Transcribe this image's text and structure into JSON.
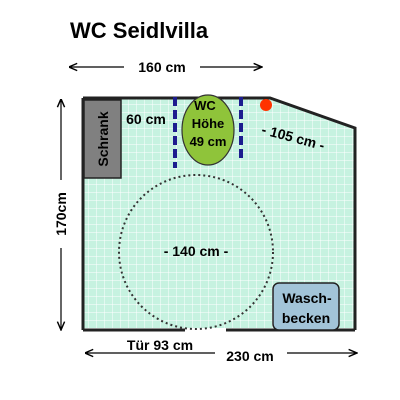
{
  "title": "WC Seidlvilla",
  "dimensions": {
    "top_width": "160 cm",
    "left_height": "170cm",
    "bottom_width": "230 cm",
    "door": "Tür 93 cm",
    "diagonal": "- 105 cm -",
    "wc_front": "60 cm",
    "turning_circle": "- 140 cm -"
  },
  "fixtures": {
    "cabinet": "Schrank",
    "wc_line1": "WC",
    "wc_line2": "Höhe",
    "wc_line3": "49 cm",
    "sink_line1": "Wasch-",
    "sink_line2": "becken"
  },
  "colors": {
    "floor": "#c6f2e0",
    "tile_grid": "#ffffff",
    "wall": "#222222",
    "cabinet": "#808080",
    "wc": "#8fc43a",
    "grab_bar": "#1d1d8f",
    "sink": "#a2c4d8",
    "alarm": "#ff3300"
  }
}
